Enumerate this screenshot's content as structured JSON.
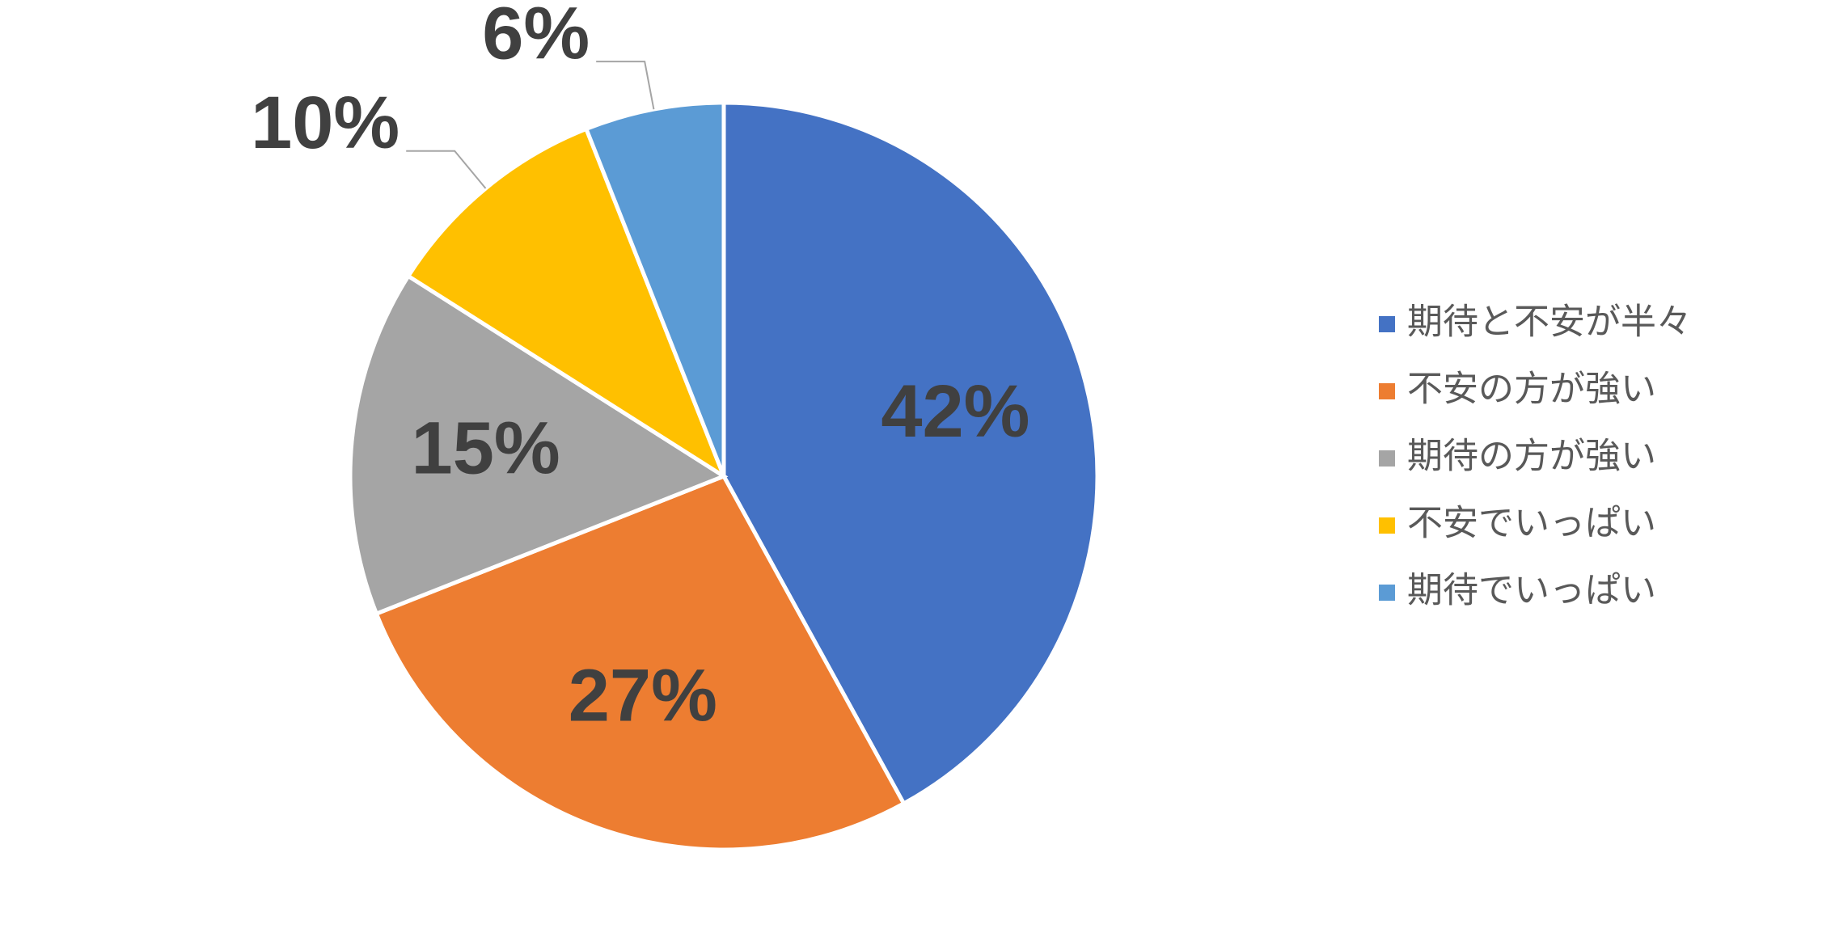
{
  "chart_data": {
    "type": "pie",
    "categories": [
      "期待と不安が半々",
      "不安の方が強い",
      "期待の方が強い",
      "不安でいっぱい",
      "期待でいっぱい"
    ],
    "values": [
      42,
      27,
      15,
      10,
      6
    ],
    "value_labels": [
      "42%",
      "27%",
      "15%",
      "10%",
      "6%"
    ],
    "colors": [
      "#4472c4",
      "#ed7d31",
      "#a5a5a5",
      "#ffc000",
      "#5b9bd5"
    ],
    "legend": "right"
  }
}
